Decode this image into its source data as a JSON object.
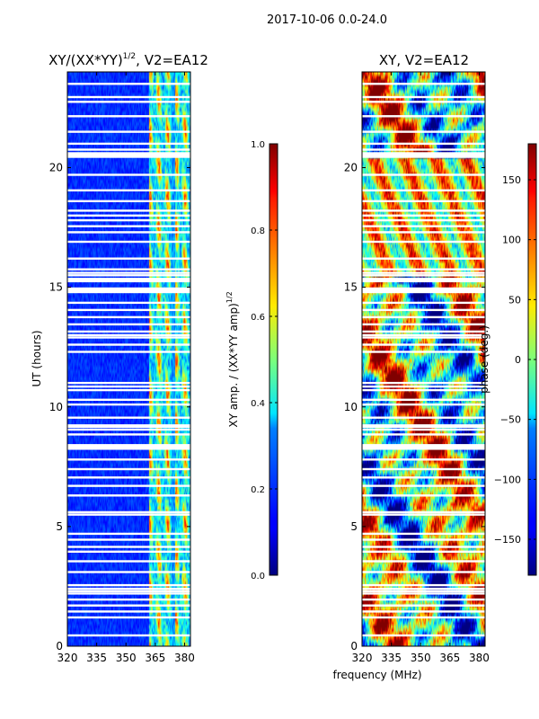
{
  "figure": {
    "suptitle": "2017-10-06 0.0-24.0",
    "shared_xlabel": "frequency (MHz)"
  },
  "chart_data": [
    {
      "type": "heatmap",
      "title": "XY/(XX*YY)^{1/2}, V2=EA12",
      "title_main": "XY/(XX*YY)",
      "title_exp": "1/2",
      "title_rest": ", V2=EA12",
      "xlabel": "",
      "ylabel": "UT (hours)",
      "xlim": [
        320,
        383
      ],
      "ylim": [
        0,
        24
      ],
      "xticks": [
        320,
        335,
        350,
        365,
        380
      ],
      "yticks": [
        0,
        5,
        10,
        15,
        20
      ],
      "colorbar": {
        "label": "XY amp. / (XX*YY amp)^{1/2}",
        "label_main": "XY amp. / (XX*YY amp)",
        "label_exp": "1/2",
        "range": [
          0.0,
          1.0
        ],
        "ticks": [
          "0.0",
          "0.2",
          "0.4",
          "0.6",
          "0.8",
          "1.0"
        ],
        "tick_values": [
          0.0,
          0.2,
          0.4,
          0.6,
          0.8,
          1.0
        ],
        "colormap": "jet"
      }
    },
    {
      "type": "heatmap",
      "title": "XY, V2=EA12",
      "xlabel": "frequency (MHz)",
      "ylabel": "",
      "xlim": [
        320,
        383
      ],
      "ylim": [
        0,
        24
      ],
      "xticks": [
        320,
        335,
        350,
        365,
        380
      ],
      "yticks": [
        0,
        5,
        10,
        15,
        20
      ],
      "colorbar": {
        "label": "phase (deg.)",
        "range": [
          -180,
          180
        ],
        "ticks": [
          "150",
          "100",
          "50",
          "0",
          "−50",
          "−100",
          "−150"
        ],
        "tick_values": [
          150,
          100,
          50,
          0,
          -50,
          -100,
          -150
        ],
        "colormap": "jet"
      }
    }
  ],
  "flagged_hours": [
    0.45,
    1.2,
    1.45,
    1.7,
    1.95,
    2.2,
    2.3,
    2.4,
    2.55,
    3.1,
    3.55,
    3.95,
    4.15,
    4.45,
    4.7,
    5.5,
    5.6,
    6.3,
    6.7,
    7.05,
    7.4,
    7.8,
    8.25,
    8.4,
    8.85,
    9.05,
    9.2,
    9.55,
    10.1,
    10.3,
    10.7,
    10.85,
    11.0,
    12.3,
    12.6,
    12.9,
    13.0,
    13.15,
    13.45,
    13.75,
    14.05,
    14.35,
    14.8,
    14.95,
    15.3,
    15.5,
    15.6,
    15.75,
    16.2,
    16.9,
    17.3,
    17.55,
    17.8,
    18.0,
    18.2,
    18.6,
    19.05,
    19.7,
    20.45,
    20.6,
    20.75,
    21.0,
    21.5,
    22.15,
    22.75,
    22.95,
    23.5
  ]
}
